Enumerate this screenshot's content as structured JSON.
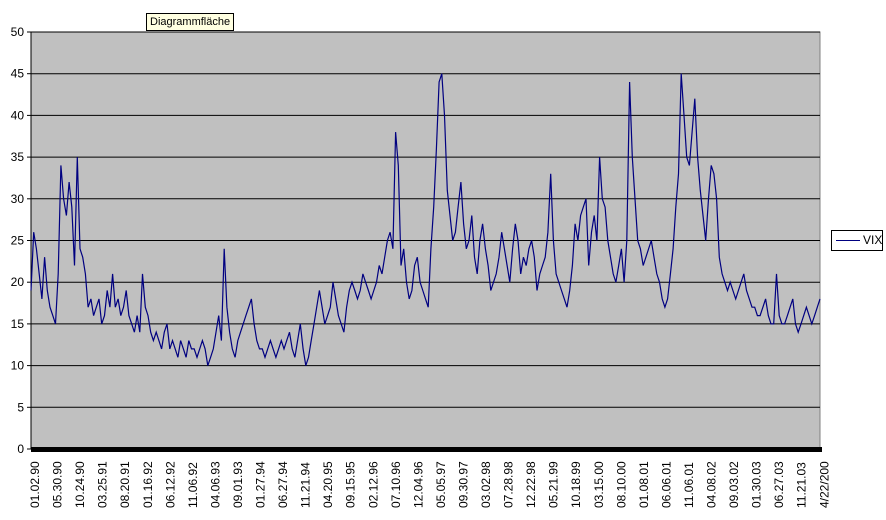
{
  "tooltip": "Diagrammfläche",
  "legend": {
    "label": "VIX",
    "color": "#000080"
  },
  "colors": {
    "plot_bg": "#c0c0c0",
    "line": "#000080",
    "grid": "#000000",
    "axis": "#000000"
  },
  "chart_data": {
    "type": "line",
    "title": "",
    "xlabel": "",
    "ylabel": "",
    "ylim": [
      0,
      50
    ],
    "yticks": [
      0,
      5,
      10,
      15,
      20,
      25,
      30,
      35,
      40,
      45,
      50
    ],
    "grid": true,
    "legend_position": "right",
    "x_tick_labels": [
      "01.02.90",
      "05.30.90",
      "10.24.90",
      "03.25.91",
      "08.20.91",
      "01.16.92",
      "06.12.92",
      "11.06.92",
      "04.06.93",
      "09.01.93",
      "01.27.94",
      "06.27.94",
      "11.21.94",
      "04.20.95",
      "09.15.95",
      "02.12.96",
      "07.10.96",
      "12.04.96",
      "05.05.97",
      "09.30.97",
      "03.02.98",
      "07.28.98",
      "12.22.98",
      "05.21.99",
      "10.18.99",
      "03.15.00",
      "08.10.00",
      "01.08.01",
      "06.06.01",
      "11.06.01",
      "04.08.02",
      "09.03.02",
      "01.30.03",
      "06.27.03",
      "11.21.03",
      "4/22/200"
    ],
    "series": [
      {
        "name": "VIX",
        "values": [
          19,
          26,
          24,
          21,
          18,
          23,
          19,
          17,
          16,
          15,
          21,
          34,
          30,
          28,
          32,
          29,
          22,
          35,
          24,
          23,
          21,
          17,
          18,
          16,
          17,
          18,
          15,
          16,
          19,
          17,
          21,
          17,
          18,
          16,
          17,
          19,
          16,
          15,
          14,
          16,
          14,
          21,
          17,
          16,
          14,
          13,
          14,
          13,
          12,
          14,
          15,
          12,
          13,
          12,
          11,
          13,
          12,
          11,
          13,
          12,
          12,
          11,
          12,
          13,
          12,
          10,
          11,
          12,
          14,
          16,
          13,
          24,
          17,
          14,
          12,
          11,
          13,
          14,
          15,
          16,
          17,
          18,
          15,
          13,
          12,
          12,
          11,
          12,
          13,
          12,
          11,
          12,
          13,
          12,
          13,
          14,
          12,
          11,
          13,
          15,
          12,
          10,
          11,
          13,
          15,
          17,
          19,
          17,
          15,
          16,
          17,
          20,
          18,
          16,
          15,
          14,
          17,
          19,
          20,
          19,
          18,
          19,
          21,
          20,
          19,
          18,
          19,
          20,
          22,
          21,
          23,
          25,
          26,
          24,
          38,
          34,
          22,
          24,
          20,
          18,
          19,
          22,
          23,
          20,
          19,
          18,
          17,
          24,
          29,
          36,
          44,
          45,
          40,
          31,
          28,
          25,
          26,
          29,
          32,
          27,
          24,
          25,
          28,
          23,
          21,
          25,
          27,
          24,
          22,
          19,
          20,
          21,
          23,
          26,
          24,
          22,
          20,
          24,
          27,
          25,
          21,
          23,
          22,
          24,
          25,
          23,
          19,
          21,
          22,
          23,
          26,
          33,
          25,
          21,
          20,
          19,
          18,
          17,
          19,
          22,
          27,
          25,
          28,
          29,
          30,
          22,
          26,
          28,
          25,
          35,
          30,
          29,
          25,
          23,
          21,
          20,
          22,
          24,
          20,
          25,
          44,
          35,
          30,
          25,
          24,
          22,
          23,
          24,
          25,
          23,
          21,
          20,
          18,
          17,
          18,
          21,
          24,
          29,
          33,
          45,
          40,
          35,
          34,
          38,
          42,
          35,
          31,
          28,
          25,
          30,
          34,
          33,
          30,
          23,
          21,
          20,
          19,
          20,
          19,
          18,
          19,
          20,
          21,
          19,
          18,
          17,
          17,
          16,
          16,
          17,
          18,
          16,
          15,
          15,
          21,
          16,
          15,
          15,
          16,
          17,
          18,
          15,
          14,
          15,
          16,
          17,
          16,
          15,
          16,
          17,
          18
        ]
      }
    ]
  }
}
